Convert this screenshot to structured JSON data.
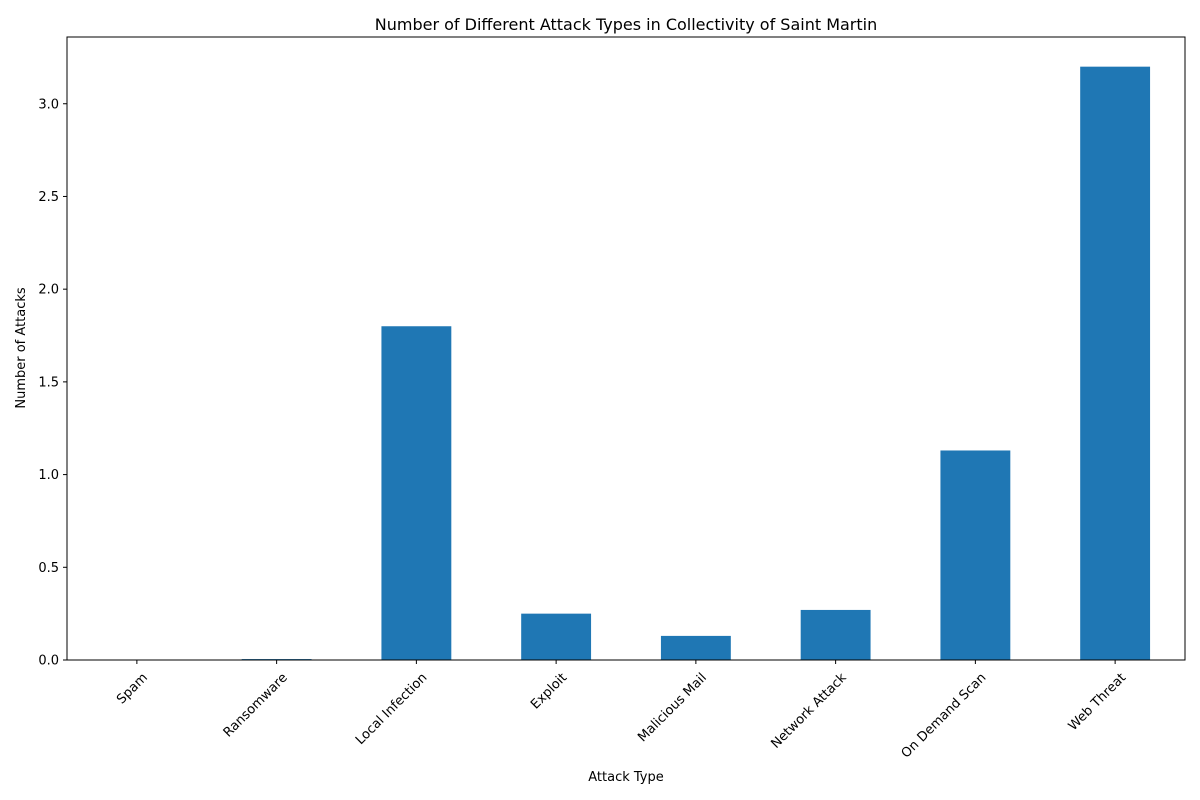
{
  "chart_data": {
    "type": "bar",
    "title": "Number of Different Attack Types in Collectivity of Saint Martin",
    "xlabel": "Attack Type",
    "ylabel": "Number of Attacks",
    "categories": [
      "Spam",
      "Ransomware",
      "Local Infection",
      "Exploit",
      "Malicious Mail",
      "Network Attack",
      "On Demand Scan",
      "Web Threat"
    ],
    "values": [
      0.0,
      0.005,
      1.8,
      0.25,
      0.13,
      0.27,
      1.13,
      3.2
    ],
    "ylim": [
      0,
      3.36
    ],
    "yticks": [
      0.0,
      0.5,
      1.0,
      1.5,
      2.0,
      2.5,
      3.0
    ],
    "ytick_labels": [
      "0.0",
      "0.5",
      "1.0",
      "1.5",
      "2.0",
      "2.5",
      "3.0"
    ],
    "x_tick_rotation_deg": 45,
    "grid": false,
    "legend": "none",
    "bar_color": "#1f77b4"
  }
}
